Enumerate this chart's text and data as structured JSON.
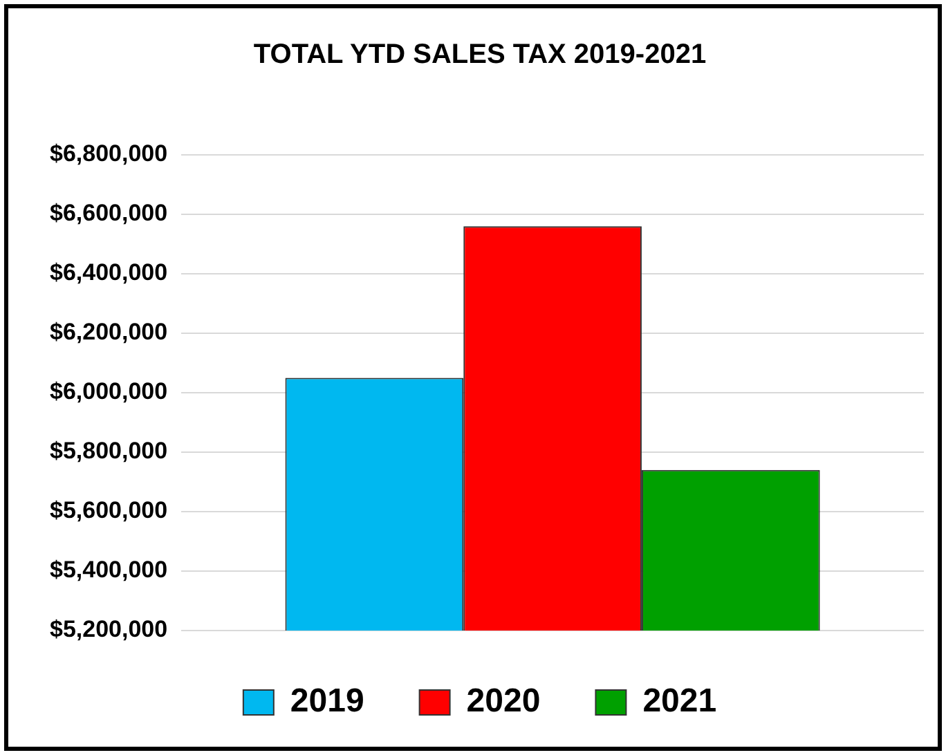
{
  "chart_data": {
    "type": "bar",
    "title": "TOTAL YTD SALES TAX 2019-2021",
    "categories": [
      null
    ],
    "series": [
      {
        "name": "2019",
        "color": "#00b8f0",
        "values": [
          6050000
        ]
      },
      {
        "name": "2020",
        "color": "#ff0000",
        "values": [
          6560000
        ]
      },
      {
        "name": "2021",
        "color": "#00a000",
        "values": [
          5740000
        ]
      }
    ],
    "ylim": [
      5200000,
      6800000
    ],
    "yticks": [
      {
        "value": 5200000,
        "label": "$5,200,000"
      },
      {
        "value": 5400000,
        "label": "$5,400,000"
      },
      {
        "value": 5600000,
        "label": "$5,600,000"
      },
      {
        "value": 5800000,
        "label": "$5,800,000"
      },
      {
        "value": 6000000,
        "label": "$6,000,000"
      },
      {
        "value": 6200000,
        "label": "$6,200,000"
      },
      {
        "value": 6400000,
        "label": "$6,400,000"
      },
      {
        "value": 6600000,
        "label": "$6,600,000"
      },
      {
        "value": 6800000,
        "label": "$6,800,000"
      }
    ],
    "grid": "y",
    "legend": "bottom",
    "tick_labels": "y"
  }
}
